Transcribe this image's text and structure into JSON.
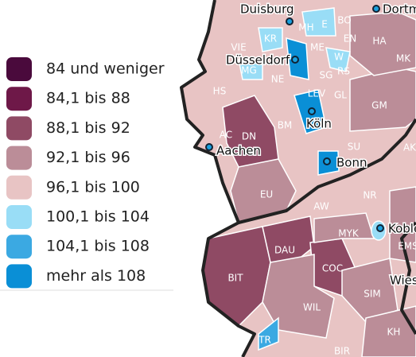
{
  "legend": {
    "items": [
      {
        "label": "84 und weniger",
        "color": "#4a0a3c"
      },
      {
        "label": "84,1 bis 88",
        "color": "#6e1848"
      },
      {
        "label": "88,1 bis 92",
        "color": "#8f4a64"
      },
      {
        "label": "92,1 bis 96",
        "color": "#bb8d98"
      },
      {
        "label": "96,1 bis 100",
        "color": "#e8c4c4"
      },
      {
        "label": "100,1 bis 104",
        "color": "#99ddf6"
      },
      {
        "label": "104,1 bis 108",
        "color": "#3ba9e2"
      },
      {
        "label": "mehr als 108",
        "color": "#0a8fd6"
      }
    ]
  },
  "cities": [
    "Duisburg",
    "Dortmund",
    "Düsseldorf",
    "Köln",
    "Aachen",
    "Bonn",
    "Koblenz",
    "Wiesbaden"
  ],
  "districts": [
    "DN",
    "HS",
    "AC",
    "EU",
    "BM",
    "SU",
    "NR",
    "AW",
    "MYK",
    "DAU",
    "COC",
    "BIT",
    "WIL",
    "SIM",
    "KH",
    "BIR",
    "TR",
    "GL",
    "GM",
    "MK",
    "HA",
    "EN",
    "BO",
    "ME",
    "KR",
    "MG",
    "NE",
    "VIE",
    "SG",
    "RS",
    "W",
    "MH",
    "E",
    "AK",
    "EMS",
    "LEV"
  ]
}
